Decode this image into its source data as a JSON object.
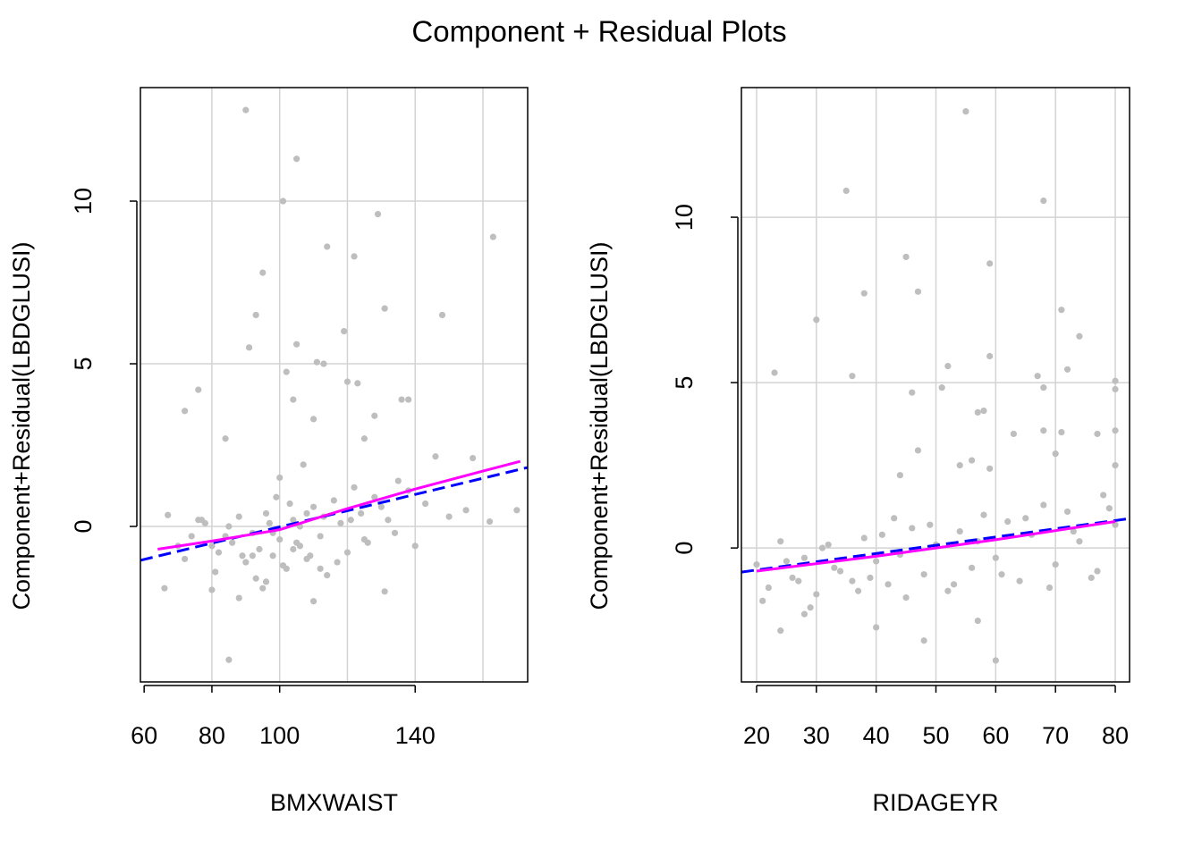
{
  "title": "Component + Residual Plots",
  "chart_data": [
    {
      "type": "scatter",
      "xlabel": "BMXWAIST",
      "ylabel": "Component+Residual(LBDGLUSI)",
      "xlim": [
        58.9,
        173.2
      ],
      "ylim": [
        -4.78,
        13.49
      ],
      "xticks": [
        60,
        80,
        100,
        140
      ],
      "xgrid": [
        80,
        100,
        120,
        140,
        160
      ],
      "yticks": [
        0,
        5,
        10
      ],
      "grid": true,
      "points": {
        "color": "#bebebe",
        "x": [
          90,
          105,
          101,
          129,
          163,
          114,
          122,
          95,
          93,
          131,
          148,
          91,
          119,
          105,
          102,
          111,
          113,
          76,
          72,
          120,
          123,
          136,
          138,
          110,
          128,
          104,
          84,
          125,
          146,
          157,
          170,
          162,
          85,
          110,
          131,
          66,
          88,
          80,
          95,
          67,
          150,
          155,
          70,
          74,
          78,
          82,
          86,
          88,
          90,
          92,
          94,
          96,
          98,
          99,
          100,
          102,
          104,
          106,
          107,
          108,
          110,
          112,
          114,
          116,
          118,
          120,
          122,
          124,
          126,
          128,
          132,
          135,
          140,
          143,
          72,
          77,
          81,
          85,
          89,
          93,
          97,
          101,
          103,
          105,
          109,
          113,
          117,
          121,
          125,
          130,
          134,
          138,
          96,
          100,
          104,
          108,
          112,
          84,
          80,
          76,
          92,
          98,
          106
        ],
        "y": [
          12.8,
          11.3,
          10,
          9.6,
          8.9,
          8.6,
          8.3,
          7.8,
          6.5,
          6.7,
          6.5,
          5.5,
          6,
          5.6,
          4.75,
          5.05,
          5,
          4.2,
          3.55,
          4.45,
          4.4,
          3.9,
          3.9,
          3.3,
          3.4,
          3.9,
          2.7,
          2.7,
          2.15,
          2.1,
          0.5,
          0.15,
          -4.1,
          -2.3,
          -2,
          -1.9,
          -2.2,
          -1.95,
          -1.9,
          0.35,
          0.3,
          0.5,
          -0.6,
          -0.3,
          0.1,
          -0.8,
          -0.5,
          0.3,
          -1.1,
          -0.2,
          -0.7,
          0.4,
          -0.9,
          0.9,
          -0.4,
          -1.3,
          0.2,
          -0.6,
          1.9,
          -1.0,
          0.6,
          -0.3,
          -1.5,
          0.8,
          0.1,
          -0.8,
          1.2,
          0.4,
          -0.5,
          0.9,
          0.2,
          1.4,
          -0.6,
          0.7,
          -1.0,
          0.2,
          -1.4,
          0.0,
          -0.9,
          -1.6,
          0.1,
          -1.2,
          0.7,
          -0.5,
          -0.9,
          0.3,
          -1.1,
          0.2,
          -0.4,
          0.6,
          -0.2,
          1.1,
          -1.7,
          1.5,
          -0.7,
          0.4,
          -1.3,
          -0.3,
          -0.6,
          0.2,
          -0.9,
          -0.2,
          0.0
        ]
      },
      "lines": [
        {
          "color": "#0000ff",
          "dash": true,
          "x": [
            58.9,
            173.2
          ],
          "y": [
            -1.04,
            1.81
          ]
        },
        {
          "color": "#ff00ff",
          "dash": false,
          "x": [
            64,
            80,
            100,
            120,
            140,
            160,
            171
          ],
          "y": [
            -0.7,
            -0.45,
            -0.1,
            0.55,
            1.15,
            1.7,
            2.0
          ]
        }
      ]
    },
    {
      "type": "scatter",
      "xlabel": "RIDAGEYR",
      "ylabel": "Component+Residual(LBDGLUSI)",
      "xlim": [
        17.46,
        82.39
      ],
      "ylim": [
        -4.05,
        13.92
      ],
      "xticks": [
        20,
        30,
        40,
        50,
        60,
        70,
        80
      ],
      "xgrid": [
        20,
        30,
        40,
        50,
        60,
        70,
        80
      ],
      "yticks": [
        0,
        5,
        10
      ],
      "grid": true,
      "points": {
        "color": "#bebebe",
        "x": [
          55,
          35,
          68,
          45,
          59,
          38,
          47,
          71,
          30,
          74,
          52,
          23,
          36,
          59,
          67,
          72,
          80,
          80,
          68,
          51,
          46,
          57,
          58,
          63,
          68,
          71,
          77,
          80,
          47,
          44,
          54,
          56,
          59,
          80,
          70,
          60,
          48,
          40,
          24,
          28,
          57,
          20,
          22,
          24,
          26,
          28,
          30,
          32,
          34,
          36,
          38,
          40,
          42,
          44,
          46,
          48,
          50,
          52,
          54,
          56,
          58,
          60,
          62,
          64,
          66,
          68,
          70,
          72,
          74,
          76,
          78,
          80,
          21,
          25,
          29,
          33,
          37,
          41,
          45,
          49,
          53,
          57,
          61,
          65,
          69,
          73,
          77,
          79,
          43,
          39,
          31,
          27
        ],
        "y": [
          13.2,
          10.8,
          10.5,
          8.8,
          8.6,
          7.7,
          7.75,
          7.2,
          6.9,
          6.4,
          5.5,
          5.3,
          5.2,
          5.8,
          5.2,
          5.4,
          5.05,
          4.8,
          4.85,
          4.85,
          4.7,
          4.1,
          4.15,
          3.45,
          3.55,
          3.5,
          3.45,
          3.55,
          2.95,
          2.2,
          2.5,
          2.65,
          2.4,
          2.5,
          2.85,
          -3.4,
          -2.8,
          -2.4,
          -2.5,
          -2,
          -2.2,
          -0.5,
          -1.2,
          0.2,
          -0.9,
          -0.3,
          -1.4,
          0.1,
          -0.7,
          -1.0,
          0.3,
          -0.4,
          -1.1,
          -0.2,
          0.6,
          -0.8,
          0.1,
          -1.3,
          0.5,
          -0.6,
          1.0,
          -0.3,
          0.8,
          -1.0,
          0.4,
          1.3,
          -0.5,
          1.1,
          0.2,
          -0.9,
          1.6,
          0.7,
          -1.6,
          -0.4,
          -1.8,
          -0.6,
          -1.3,
          0.4,
          -1.5,
          0.7,
          -1.1,
          0.2,
          -0.8,
          0.9,
          -1.2,
          0.5,
          -0.7,
          1.2,
          0.9,
          -0.9,
          0.0,
          -1.0
        ]
      },
      "lines": [
        {
          "color": "#0000ff",
          "dash": true,
          "x": [
            17.46,
            82.39
          ],
          "y": [
            -0.73,
            0.89
          ]
        },
        {
          "color": "#ff00ff",
          "dash": false,
          "x": [
            20,
            40,
            60,
            80
          ],
          "y": [
            -0.7,
            -0.25,
            0.25,
            0.8
          ]
        }
      ]
    }
  ]
}
